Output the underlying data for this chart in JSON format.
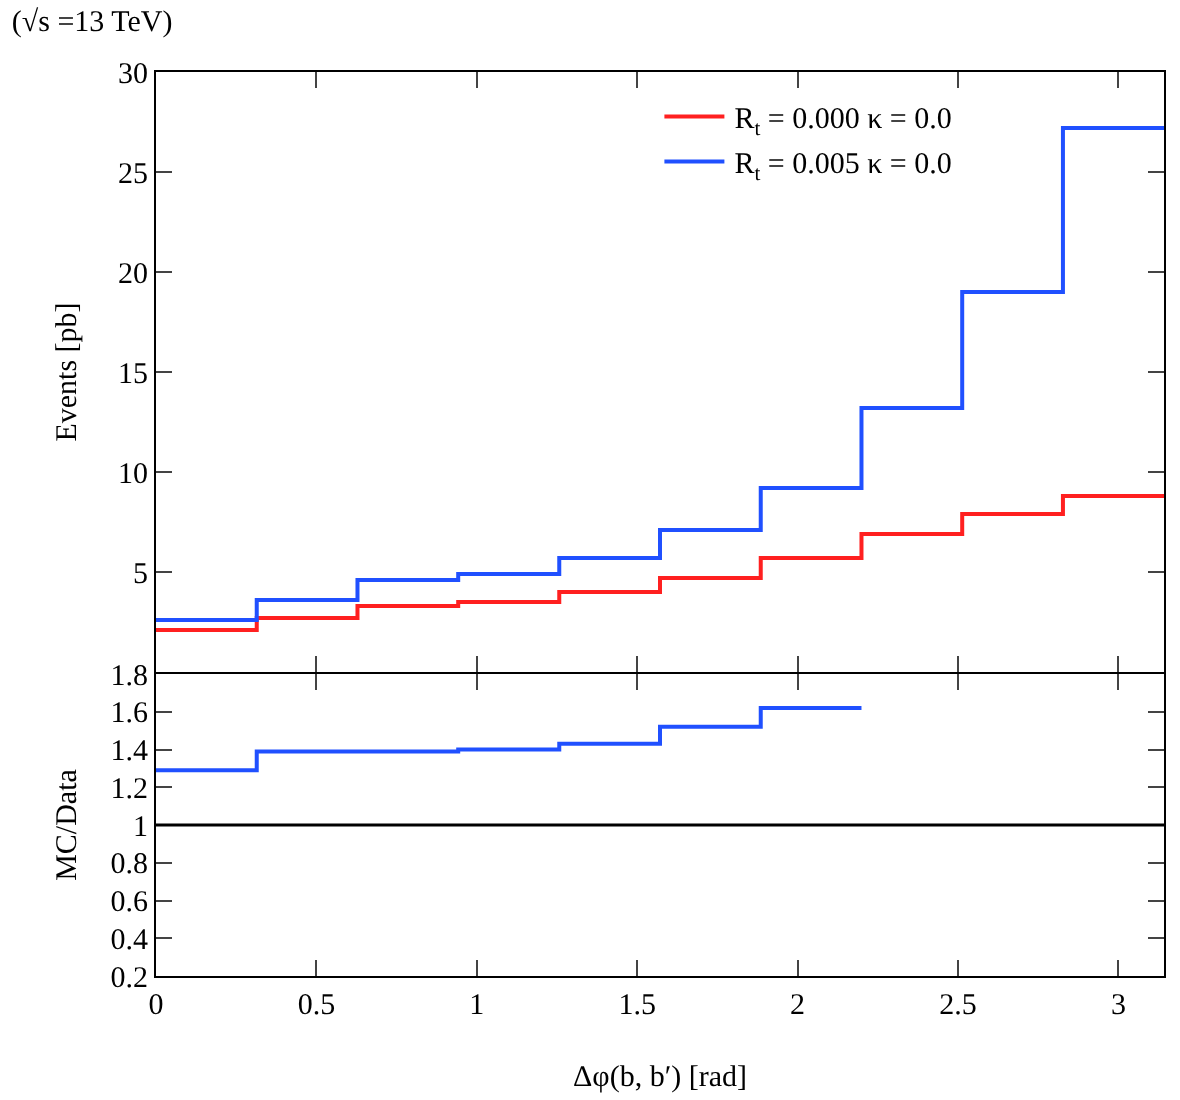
{
  "chart_data": [
    {
      "type": "histogram",
      "title": "(√s =13 TeV)",
      "ylabel": "Events [pb]",
      "bins": [
        0,
        0.314,
        0.628,
        0.942,
        1.257,
        1.571,
        1.885,
        2.199,
        2.513,
        2.827,
        3.142
      ],
      "series": [
        {
          "name": "R$_{t}$ = 0.000 κ = 0.0",
          "color": "#ff2020",
          "values": [
            2.1,
            2.7,
            3.3,
            3.5,
            4.0,
            4.7,
            5.7,
            6.9,
            7.9,
            8.8
          ]
        },
        {
          "name": "R$_{t}$ = 0.005 κ = 0.0",
          "color": "#2050ff",
          "values": [
            2.6,
            3.6,
            4.6,
            4.9,
            5.7,
            7.1,
            9.2,
            13.2,
            19.0,
            27.2
          ]
        }
      ],
      "xlim": [
        0,
        3.142
      ],
      "ylim": [
        0,
        30
      ],
      "yticks": [
        5,
        10,
        15,
        20,
        25,
        30
      ],
      "legend": "top right",
      "tick_labels": "y"
    },
    {
      "type": "histogram",
      "xlabel": "Δφ(b, b′) [rad]",
      "ylabel": "MC/Data",
      "bins": [
        0,
        0.314,
        0.628,
        0.942,
        1.257,
        1.571,
        1.885,
        2.199
      ],
      "series": [
        {
          "color": "#2050ff",
          "values": [
            1.29,
            1.39,
            1.39,
            1.4,
            1.43,
            1.52,
            1.62
          ]
        }
      ],
      "xlim": [
        0,
        3.142
      ],
      "ylim": [
        0.2,
        1.8
      ],
      "xticks": [
        0,
        0.5,
        1,
        1.5,
        2,
        2.5,
        3
      ],
      "yticks": [
        0.2,
        0.4,
        0.6,
        0.8,
        1,
        1.2,
        1.4,
        1.6,
        1.8
      ],
      "ref_lines": [
        {
          "axis": "y",
          "value": 1,
          "color": "#000000"
        }
      ]
    }
  ]
}
